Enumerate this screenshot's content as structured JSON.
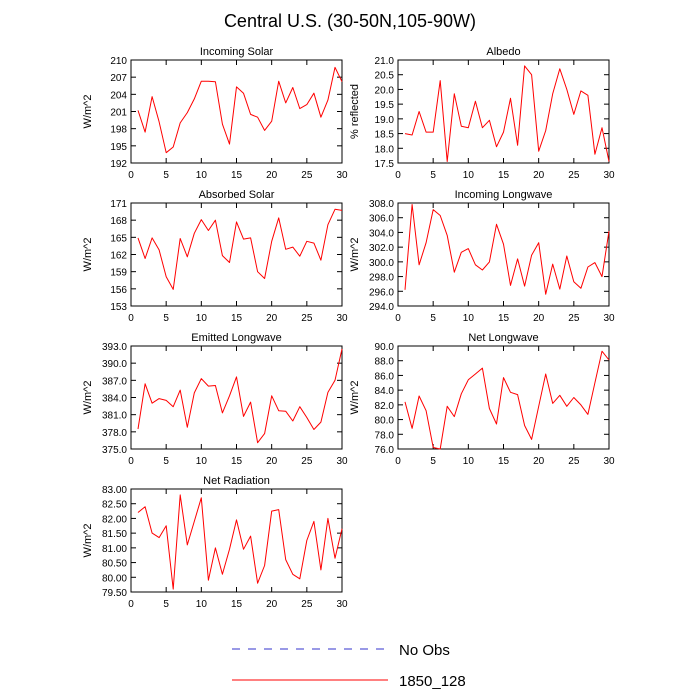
{
  "figure": {
    "title": "Central U.S. (30-50N,105-90W)",
    "colors": {
      "model": "#ff0000",
      "obs": "#3333cc",
      "axis": "#000000"
    }
  },
  "legend": {
    "entries": [
      {
        "label": "No Obs",
        "style": "dashed",
        "color": "#3333cc"
      },
      {
        "label": "1850_128",
        "style": "solid",
        "color": "#ff0000"
      }
    ]
  },
  "chart_data": [
    {
      "type": "line",
      "title": "Incoming Solar",
      "xlabel": "",
      "ylabel": "W/m^2",
      "xlim": [
        0,
        30
      ],
      "xticks": [
        0,
        5,
        10,
        15,
        20,
        25,
        30
      ],
      "ylim": [
        192,
        210
      ],
      "yticks": [
        192,
        195,
        198,
        201,
        204,
        207,
        210
      ],
      "ydecimals": 0,
      "grid": false,
      "series": [
        {
          "name": "1850_128",
          "x": [
            1,
            2,
            3,
            4,
            5,
            6,
            7,
            8,
            9,
            10,
            11,
            12,
            13,
            14,
            15,
            16,
            17,
            18,
            19,
            20,
            21,
            22,
            23,
            24,
            25,
            26,
            27,
            28,
            29,
            30
          ],
          "values": [
            201.2,
            197.4,
            203.6,
            199.2,
            193.8,
            194.8,
            199.0,
            200.8,
            203.2,
            206.3,
            206.3,
            206.2,
            198.8,
            195.3,
            205.3,
            204.2,
            200.5,
            200.0,
            197.7,
            199.3,
            206.3,
            202.5,
            205.2,
            201.5,
            202.2,
            204.2,
            200.0,
            203.0,
            208.7,
            206.2
          ]
        }
      ]
    },
    {
      "type": "line",
      "title": "Albedo",
      "xlabel": "",
      "ylabel": "% reflected",
      "xlim": [
        0,
        30
      ],
      "xticks": [
        0,
        5,
        10,
        15,
        20,
        25,
        30
      ],
      "ylim": [
        17.5,
        21.0
      ],
      "yticks": [
        17.5,
        18.0,
        18.5,
        19.0,
        19.5,
        20.0,
        20.5,
        21.0
      ],
      "ydecimals": 1,
      "grid": false,
      "series": [
        {
          "name": "1850_128",
          "x": [
            1,
            2,
            3,
            4,
            5,
            6,
            7,
            8,
            9,
            10,
            11,
            12,
            13,
            14,
            15,
            16,
            17,
            18,
            19,
            20,
            21,
            22,
            23,
            24,
            25,
            26,
            27,
            28,
            29,
            30
          ],
          "values": [
            18.5,
            18.45,
            19.25,
            18.55,
            18.55,
            20.3,
            17.55,
            19.85,
            18.75,
            18.7,
            19.6,
            18.7,
            18.95,
            18.05,
            18.55,
            19.7,
            18.1,
            20.8,
            20.5,
            17.9,
            18.6,
            19.85,
            20.7,
            20.0,
            19.15,
            19.95,
            19.8,
            17.8,
            18.7,
            17.55
          ]
        }
      ]
    },
    {
      "type": "line",
      "title": "Absorbed Solar",
      "xlabel": "",
      "ylabel": "W/m^2",
      "xlim": [
        0,
        30
      ],
      "xticks": [
        0,
        5,
        10,
        15,
        20,
        25,
        30
      ],
      "ylim": [
        153,
        171
      ],
      "yticks": [
        153,
        156,
        159,
        162,
        165,
        168,
        171
      ],
      "ydecimals": 0,
      "grid": false,
      "series": [
        {
          "name": "1850_128",
          "x": [
            1,
            2,
            3,
            4,
            5,
            6,
            7,
            8,
            9,
            10,
            11,
            12,
            13,
            14,
            15,
            16,
            17,
            18,
            19,
            20,
            21,
            22,
            23,
            24,
            25,
            26,
            27,
            28,
            29,
            30
          ],
          "values": [
            164.9,
            161.3,
            164.9,
            162.8,
            158.1,
            155.9,
            164.8,
            161.6,
            165.7,
            168.1,
            166.2,
            168.0,
            161.8,
            160.6,
            167.7,
            164.7,
            164.9,
            159.0,
            157.8,
            164.3,
            168.4,
            162.9,
            163.3,
            161.7,
            164.3,
            164.0,
            161.0,
            167.2,
            169.9,
            169.7
          ]
        }
      ]
    },
    {
      "type": "line",
      "title": "Incoming Longwave",
      "xlabel": "",
      "ylabel": "W/m^2",
      "xlim": [
        0,
        30
      ],
      "xticks": [
        0,
        5,
        10,
        15,
        20,
        25,
        30
      ],
      "ylim": [
        294,
        308
      ],
      "yticks": [
        294,
        296,
        298,
        300,
        302,
        304,
        306,
        308
      ],
      "ydecimals": 1,
      "grid": false,
      "series": [
        {
          "name": "1850_128",
          "x": [
            1,
            2,
            3,
            4,
            5,
            6,
            7,
            8,
            9,
            10,
            11,
            12,
            13,
            14,
            15,
            16,
            17,
            18,
            19,
            20,
            21,
            22,
            23,
            24,
            25,
            26,
            27,
            28,
            29,
            30
          ],
          "values": [
            296.2,
            307.8,
            299.6,
            302.6,
            307.1,
            306.3,
            303.6,
            298.6,
            301.3,
            301.8,
            299.6,
            298.9,
            300.0,
            305.1,
            302.4,
            296.8,
            300.4,
            296.7,
            300.9,
            302.6,
            295.6,
            299.7,
            296.3,
            300.8,
            297.3,
            296.4,
            299.3,
            299.9,
            298.0,
            304.2
          ]
        }
      ]
    },
    {
      "type": "line",
      "title": "Emitted Longwave",
      "xlabel": "",
      "ylabel": "W/m^2",
      "xlim": [
        0,
        30
      ],
      "xticks": [
        0,
        5,
        10,
        15,
        20,
        25,
        30
      ],
      "ylim": [
        375,
        393
      ],
      "yticks": [
        375,
        378,
        381,
        384,
        387,
        390,
        393
      ],
      "ydecimals": 1,
      "grid": false,
      "series": [
        {
          "name": "1850_128",
          "x": [
            1,
            2,
            3,
            4,
            5,
            6,
            7,
            8,
            9,
            10,
            11,
            12,
            13,
            14,
            15,
            16,
            17,
            18,
            19,
            20,
            21,
            22,
            23,
            24,
            25,
            26,
            27,
            28,
            29,
            30
          ],
          "values": [
            378.5,
            386.4,
            383.0,
            383.8,
            383.5,
            382.4,
            385.3,
            378.8,
            384.8,
            387.3,
            386.0,
            386.1,
            381.3,
            384.3,
            387.6,
            380.7,
            383.2,
            376.1,
            377.7,
            384.3,
            381.7,
            381.6,
            379.9,
            382.4,
            380.5,
            378.4,
            379.7,
            384.9,
            387.0,
            392.5
          ]
        }
      ]
    },
    {
      "type": "line",
      "title": "Net Longwave",
      "xlabel": "",
      "ylabel": "W/m^2",
      "xlim": [
        0,
        30
      ],
      "xticks": [
        0,
        5,
        10,
        15,
        20,
        25,
        30
      ],
      "ylim": [
        76,
        90
      ],
      "yticks": [
        76,
        78,
        80,
        82,
        84,
        86,
        88,
        90
      ],
      "ydecimals": 1,
      "grid": false,
      "series": [
        {
          "name": "1850_128",
          "x": [
            1,
            2,
            3,
            4,
            5,
            6,
            7,
            8,
            9,
            10,
            11,
            12,
            13,
            14,
            15,
            16,
            17,
            18,
            19,
            20,
            21,
            22,
            23,
            24,
            25,
            26,
            27,
            28,
            29,
            30
          ],
          "values": [
            82.4,
            78.8,
            83.2,
            81.2,
            76.2,
            76.0,
            81.8,
            80.4,
            83.5,
            85.4,
            86.2,
            87.0,
            81.5,
            79.4,
            85.7,
            83.7,
            83.4,
            79.2,
            77.3,
            81.8,
            86.2,
            82.2,
            83.3,
            81.8,
            83.0,
            82.0,
            80.7,
            85.0,
            89.3,
            88.1
          ]
        }
      ]
    },
    {
      "type": "line",
      "title": "Net Radiation",
      "xlabel": "",
      "ylabel": "W/m^2",
      "xlim": [
        0,
        30
      ],
      "xticks": [
        0,
        5,
        10,
        15,
        20,
        25,
        30
      ],
      "ylim": [
        79.5,
        83.0
      ],
      "yticks": [
        79.5,
        80.0,
        80.5,
        81.0,
        81.5,
        82.0,
        82.5,
        83.0
      ],
      "ydecimals": 2,
      "grid": false,
      "series": [
        {
          "name": "1850_128",
          "x": [
            1,
            2,
            3,
            4,
            5,
            6,
            7,
            8,
            9,
            10,
            11,
            12,
            13,
            14,
            15,
            16,
            17,
            18,
            19,
            20,
            21,
            22,
            23,
            24,
            25,
            26,
            27,
            28,
            29,
            30
          ],
          "values": [
            82.2,
            82.4,
            81.5,
            81.35,
            81.75,
            79.6,
            82.8,
            81.1,
            81.9,
            82.7,
            79.9,
            81.0,
            80.1,
            80.95,
            81.95,
            80.95,
            81.4,
            79.8,
            80.4,
            82.25,
            82.3,
            80.6,
            80.1,
            79.95,
            81.25,
            81.9,
            80.25,
            82.0,
            80.65,
            81.65
          ]
        }
      ]
    }
  ]
}
